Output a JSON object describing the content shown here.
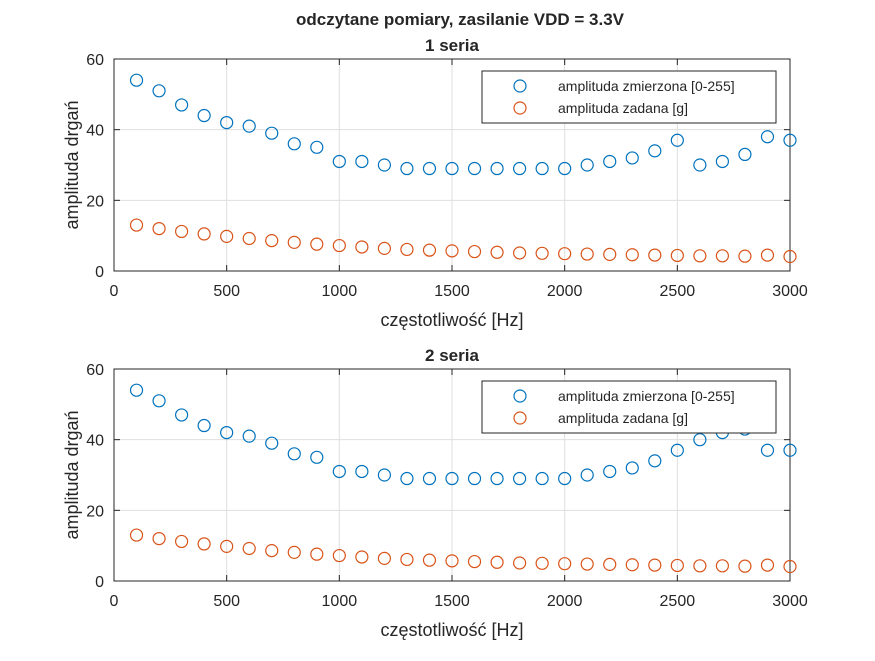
{
  "figure": {
    "suptitle": "odczytane pomiary, zasilanie VDD = 3.3V"
  },
  "colors": {
    "series_blue": "#0072BD",
    "series_orange": "#D95319",
    "axis": "#262626",
    "grid": "#dfdfdf"
  },
  "chart_data": [
    {
      "type": "scatter",
      "title": "1 seria",
      "xlabel": "częstotliwość [Hz]",
      "ylabel": "amplituda drgań",
      "xlim": [
        0,
        3000
      ],
      "ylim": [
        0,
        60
      ],
      "xticks": [
        0,
        500,
        1000,
        1500,
        2000,
        2500,
        3000
      ],
      "yticks": [
        0,
        20,
        40,
        60
      ],
      "grid": true,
      "legend_position": "top-right",
      "x": [
        100,
        200,
        300,
        400,
        500,
        600,
        700,
        800,
        900,
        1000,
        1100,
        1200,
        1300,
        1400,
        1500,
        1600,
        1700,
        1800,
        1900,
        2000,
        2100,
        2200,
        2300,
        2400,
        2500,
        2600,
        2700,
        2800,
        2900,
        3000
      ],
      "series": [
        {
          "name": "amplituda zmierzona [0-255]",
          "color": "#0072BD",
          "values": [
            54,
            51,
            47,
            44,
            42,
            41,
            39,
            36,
            35,
            31,
            31,
            30,
            29,
            29,
            29,
            29,
            29,
            29,
            29,
            29,
            30,
            31,
            32,
            34,
            37,
            30,
            31,
            33,
            38,
            37
          ]
        },
        {
          "name": "amplituda zadana [g]",
          "color": "#D95319",
          "values": [
            13,
            12,
            11.2,
            10.5,
            9.8,
            9.2,
            8.6,
            8.1,
            7.6,
            7.2,
            6.8,
            6.4,
            6.1,
            5.9,
            5.7,
            5.5,
            5.3,
            5.1,
            5.0,
            4.9,
            4.8,
            4.7,
            4.6,
            4.5,
            4.4,
            4.3,
            4.3,
            4.2,
            4.5,
            4.1
          ]
        }
      ]
    },
    {
      "type": "scatter",
      "title": "2 seria",
      "xlabel": "częstotliwość [Hz]",
      "ylabel": "amplituda drgań",
      "xlim": [
        0,
        3000
      ],
      "ylim": [
        0,
        60
      ],
      "xticks": [
        0,
        500,
        1000,
        1500,
        2000,
        2500,
        3000
      ],
      "yticks": [
        0,
        20,
        40,
        60
      ],
      "grid": true,
      "legend_position": "top-right",
      "x": [
        100,
        200,
        300,
        400,
        500,
        600,
        700,
        800,
        900,
        1000,
        1100,
        1200,
        1300,
        1400,
        1500,
        1600,
        1700,
        1800,
        1900,
        2000,
        2100,
        2200,
        2300,
        2400,
        2500,
        2600,
        2700,
        2800,
        2900,
        3000
      ],
      "series": [
        {
          "name": "amplituda zmierzona [0-255]",
          "color": "#0072BD",
          "values": [
            54,
            51,
            47,
            44,
            42,
            41,
            39,
            36,
            35,
            31,
            31,
            30,
            29,
            29,
            29,
            29,
            29,
            29,
            29,
            29,
            30,
            31,
            32,
            34,
            37,
            40,
            42,
            43,
            37,
            37
          ]
        },
        {
          "name": "amplituda zadana [g]",
          "color": "#D95319",
          "values": [
            13,
            12,
            11.2,
            10.5,
            9.8,
            9.2,
            8.6,
            8.1,
            7.6,
            7.2,
            6.8,
            6.4,
            6.1,
            5.9,
            5.7,
            5.5,
            5.3,
            5.1,
            5.0,
            4.9,
            4.8,
            4.7,
            4.6,
            4.5,
            4.4,
            4.3,
            4.3,
            4.2,
            4.5,
            4.1
          ]
        }
      ]
    }
  ]
}
